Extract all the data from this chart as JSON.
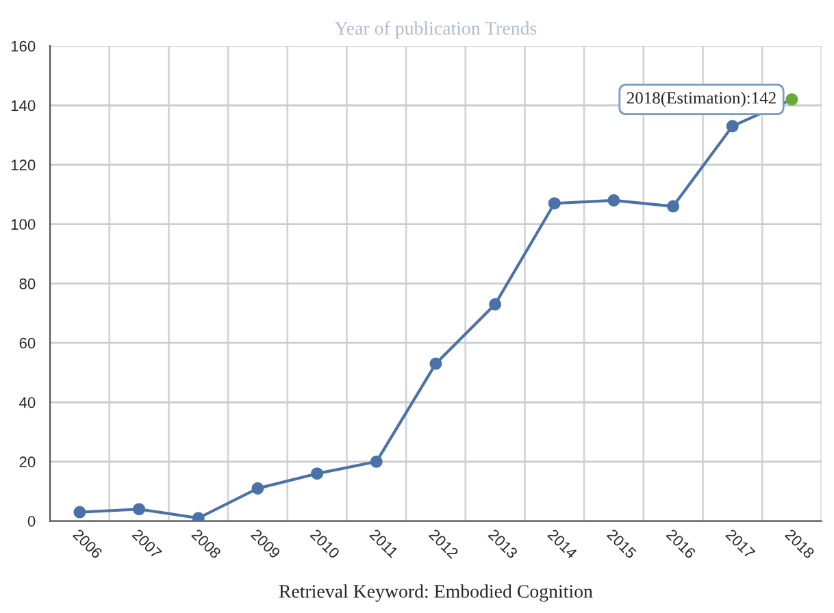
{
  "chart_data": {
    "type": "line",
    "title": "Year of publication Trends",
    "xlabel": "Retrieval Keyword: Embodied Cognition",
    "categories": [
      "2006",
      "2007",
      "2008",
      "2009",
      "2010",
      "2011",
      "2012",
      "2013",
      "2014",
      "2015",
      "2016",
      "2017",
      "2018"
    ],
    "series": [
      {
        "color": "#4a72a8",
        "colors": [
          "#4a72a8",
          "#4a72a8",
          "#4a72a8",
          "#4a72a8",
          "#4a72a8",
          "#4a72a8",
          "#4a72a8",
          "#4a72a8",
          "#4a72a8",
          "#4a72a8",
          "#4a72a8",
          "#4a72a8",
          "#6aa839"
        ],
        "values": [
          3,
          4,
          1,
          11,
          16,
          20,
          53,
          73,
          107,
          108,
          106,
          133,
          142
        ]
      }
    ],
    "annotations": [
      {
        "text": "2018(Estimation):142",
        "x": "2018",
        "y": 142
      }
    ],
    "ylim": [
      0,
      160
    ],
    "yticks": [
      0,
      20,
      40,
      60,
      80,
      100,
      120,
      140,
      160
    ],
    "grid": true,
    "marker": "circle",
    "line_style": "solid",
    "legend": false
  }
}
